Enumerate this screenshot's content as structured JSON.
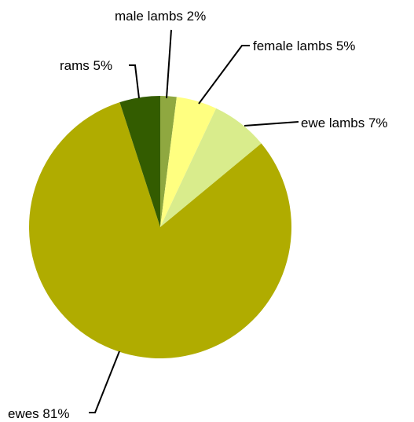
{
  "chart_data": {
    "type": "pie",
    "title": "",
    "slices": [
      {
        "name": "male lambs",
        "value": 2,
        "label": "male lambs 2%",
        "color": "#8fa840"
      },
      {
        "name": "female lambs",
        "value": 5,
        "label": "female lambs 5%",
        "color": "#ffff80"
      },
      {
        "name": "ewe lambs",
        "value": 7,
        "label": "ewe lambs 7%",
        "color": "#d9ec8c"
      },
      {
        "name": "ewes",
        "value": 81,
        "label": "ewes 81%",
        "color": "#b0ac00"
      },
      {
        "name": "rams",
        "value": 5,
        "label": "rams 5%",
        "color": "#335c00"
      }
    ],
    "start_angle": "top (12 o'clock)",
    "direction": "clockwise",
    "legend": "none",
    "labels": "outside with leader lines"
  }
}
